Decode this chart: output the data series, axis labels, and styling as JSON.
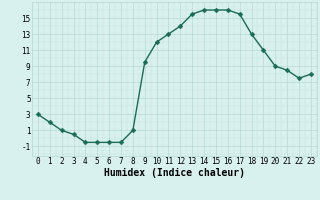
{
  "x": [
    0,
    1,
    2,
    3,
    4,
    5,
    6,
    7,
    8,
    9,
    10,
    11,
    12,
    13,
    14,
    15,
    16,
    17,
    18,
    19,
    20,
    21,
    22,
    23
  ],
  "y": [
    3,
    2,
    1,
    0.5,
    -0.5,
    -0.5,
    -0.5,
    -0.5,
    1,
    9.5,
    12,
    13,
    14,
    15.5,
    16,
    16,
    16,
    15.5,
    13,
    11,
    9,
    8.5,
    7.5,
    8
  ],
  "line_color": "#1a6b58",
  "marker_color": "#1a6b58",
  "bg_color": "#d8f0ee",
  "grid_major_color": "#b8d8d4",
  "grid_minor_color": "#c8e4e0",
  "xlabel": "Humidex (Indice chaleur)",
  "xlim": [
    -0.5,
    23.5
  ],
  "ylim": [
    -2.2,
    17.0
  ],
  "xticks": [
    0,
    1,
    2,
    3,
    4,
    5,
    6,
    7,
    8,
    9,
    10,
    11,
    12,
    13,
    14,
    15,
    16,
    17,
    18,
    19,
    20,
    21,
    22,
    23
  ],
  "yticks": [
    -1,
    1,
    3,
    5,
    7,
    9,
    11,
    13,
    15
  ],
  "tick_fontsize": 5.5,
  "xlabel_fontsize": 7,
  "marker_size": 2.5,
  "line_width": 1.0
}
